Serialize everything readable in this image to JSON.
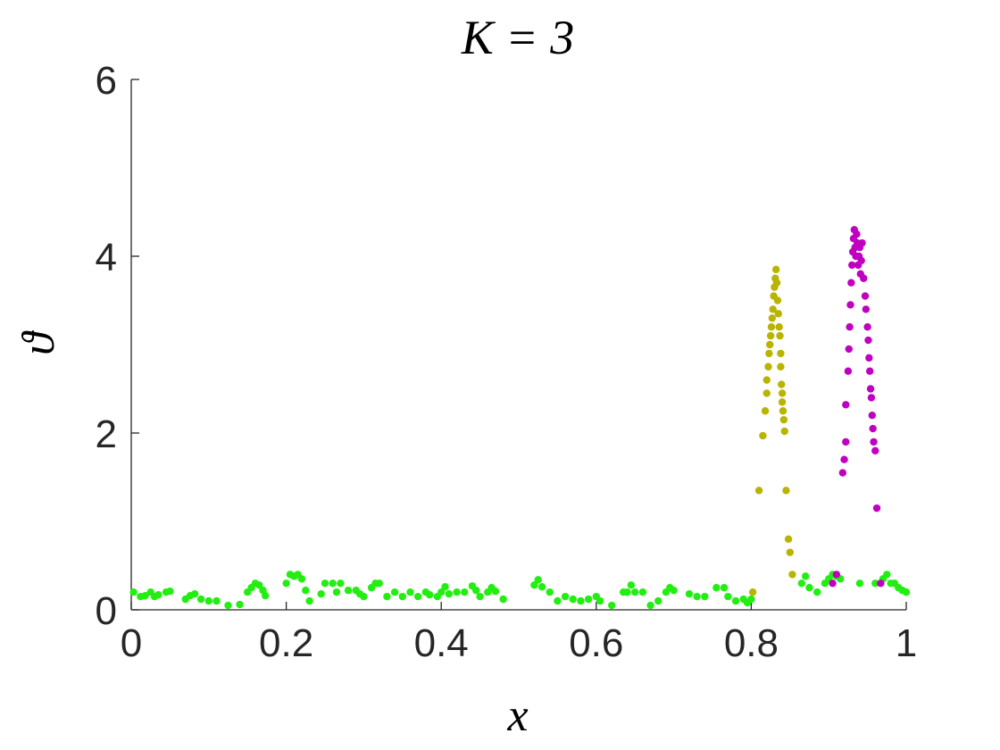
{
  "chart_data": {
    "type": "scatter",
    "title": "K = 3",
    "xlabel": "x",
    "ylabel": "ϑ",
    "xlim": [
      0,
      1
    ],
    "ylim": [
      0,
      6
    ],
    "xticks": [
      0,
      0.2,
      0.4,
      0.6,
      0.8,
      1
    ],
    "xtick_labels": [
      "0",
      "0.2",
      "0.4",
      "0.6",
      "0.8",
      "1"
    ],
    "yticks": [
      0,
      2,
      4,
      6
    ],
    "ytick_labels": [
      "0",
      "2",
      "4",
      "6"
    ],
    "grid": false,
    "legend": "none",
    "series": [
      {
        "color": "#22ee11",
        "points": [
          [
            0.003,
            0.2
          ],
          [
            0.012,
            0.15
          ],
          [
            0.018,
            0.16
          ],
          [
            0.025,
            0.2
          ],
          [
            0.03,
            0.15
          ],
          [
            0.035,
            0.17
          ],
          [
            0.045,
            0.2
          ],
          [
            0.05,
            0.21
          ],
          [
            0.07,
            0.12
          ],
          [
            0.076,
            0.16
          ],
          [
            0.082,
            0.18
          ],
          [
            0.09,
            0.12
          ],
          [
            0.1,
            0.1
          ],
          [
            0.11,
            0.1
          ],
          [
            0.125,
            0.05
          ],
          [
            0.14,
            0.06
          ],
          [
            0.15,
            0.2
          ],
          [
            0.155,
            0.25
          ],
          [
            0.16,
            0.3
          ],
          [
            0.165,
            0.28
          ],
          [
            0.17,
            0.22
          ],
          [
            0.173,
            0.16
          ],
          [
            0.2,
            0.3
          ],
          [
            0.205,
            0.4
          ],
          [
            0.21,
            0.38
          ],
          [
            0.215,
            0.4
          ],
          [
            0.22,
            0.35
          ],
          [
            0.225,
            0.22
          ],
          [
            0.23,
            0.1
          ],
          [
            0.245,
            0.18
          ],
          [
            0.25,
            0.3
          ],
          [
            0.26,
            0.3
          ],
          [
            0.265,
            0.2
          ],
          [
            0.27,
            0.3
          ],
          [
            0.28,
            0.22
          ],
          [
            0.29,
            0.22
          ],
          [
            0.295,
            0.18
          ],
          [
            0.3,
            0.15
          ],
          [
            0.31,
            0.25
          ],
          [
            0.315,
            0.3
          ],
          [
            0.32,
            0.3
          ],
          [
            0.33,
            0.15
          ],
          [
            0.34,
            0.2
          ],
          [
            0.35,
            0.15
          ],
          [
            0.36,
            0.2
          ],
          [
            0.37,
            0.15
          ],
          [
            0.38,
            0.2
          ],
          [
            0.385,
            0.17
          ],
          [
            0.395,
            0.15
          ],
          [
            0.4,
            0.2
          ],
          [
            0.405,
            0.26
          ],
          [
            0.41,
            0.18
          ],
          [
            0.42,
            0.2
          ],
          [
            0.43,
            0.2
          ],
          [
            0.44,
            0.27
          ],
          [
            0.445,
            0.22
          ],
          [
            0.45,
            0.15
          ],
          [
            0.46,
            0.2
          ],
          [
            0.465,
            0.25
          ],
          [
            0.47,
            0.21
          ],
          [
            0.48,
            0.12
          ],
          [
            0.52,
            0.28
          ],
          [
            0.525,
            0.34
          ],
          [
            0.53,
            0.26
          ],
          [
            0.54,
            0.2
          ],
          [
            0.55,
            0.1
          ],
          [
            0.56,
            0.15
          ],
          [
            0.57,
            0.12
          ],
          [
            0.58,
            0.1
          ],
          [
            0.59,
            0.12
          ],
          [
            0.6,
            0.15
          ],
          [
            0.605,
            0.1
          ],
          [
            0.62,
            0.05
          ],
          [
            0.635,
            0.2
          ],
          [
            0.64,
            0.2
          ],
          [
            0.645,
            0.28
          ],
          [
            0.65,
            0.2
          ],
          [
            0.66,
            0.2
          ],
          [
            0.67,
            0.05
          ],
          [
            0.68,
            0.1
          ],
          [
            0.69,
            0.2
          ],
          [
            0.695,
            0.25
          ],
          [
            0.7,
            0.22
          ],
          [
            0.72,
            0.18
          ],
          [
            0.73,
            0.15
          ],
          [
            0.74,
            0.15
          ],
          [
            0.755,
            0.25
          ],
          [
            0.765,
            0.25
          ],
          [
            0.77,
            0.15
          ],
          [
            0.78,
            0.1
          ],
          [
            0.79,
            0.12
          ],
          [
            0.795,
            0.08
          ],
          [
            0.8,
            0.12
          ],
          [
            0.865,
            0.3
          ],
          [
            0.87,
            0.38
          ],
          [
            0.875,
            0.25
          ],
          [
            0.885,
            0.2
          ],
          [
            0.895,
            0.3
          ],
          [
            0.9,
            0.35
          ],
          [
            0.905,
            0.4
          ],
          [
            0.91,
            0.38
          ],
          [
            0.915,
            0.35
          ],
          [
            0.94,
            0.3
          ],
          [
            0.96,
            0.3
          ],
          [
            0.97,
            0.35
          ],
          [
            0.975,
            0.4
          ],
          [
            0.98,
            0.3
          ],
          [
            0.985,
            0.3
          ],
          [
            0.99,
            0.25
          ],
          [
            0.995,
            0.22
          ],
          [
            1.0,
            0.2
          ]
        ]
      },
      {
        "color": "#b8b400",
        "points": [
          [
            0.802,
            0.2
          ],
          [
            0.81,
            1.35
          ],
          [
            0.815,
            1.97
          ],
          [
            0.818,
            2.25
          ],
          [
            0.82,
            2.45
          ],
          [
            0.82,
            2.6
          ],
          [
            0.822,
            2.75
          ],
          [
            0.823,
            2.9
          ],
          [
            0.824,
            3.0
          ],
          [
            0.825,
            3.1
          ],
          [
            0.826,
            3.2
          ],
          [
            0.827,
            3.3
          ],
          [
            0.828,
            3.4
          ],
          [
            0.829,
            3.55
          ],
          [
            0.83,
            3.65
          ],
          [
            0.831,
            3.75
          ],
          [
            0.832,
            3.85
          ],
          [
            0.833,
            3.7
          ],
          [
            0.834,
            3.5
          ],
          [
            0.835,
            3.35
          ],
          [
            0.836,
            3.2
          ],
          [
            0.837,
            3.1
          ],
          [
            0.838,
            2.9
          ],
          [
            0.838,
            2.75
          ],
          [
            0.839,
            2.55
          ],
          [
            0.84,
            2.45
          ],
          [
            0.84,
            2.35
          ],
          [
            0.841,
            2.25
          ],
          [
            0.842,
            2.15
          ],
          [
            0.843,
            2.02
          ],
          [
            0.845,
            1.35
          ],
          [
            0.848,
            0.8
          ],
          [
            0.85,
            0.65
          ],
          [
            0.853,
            0.4
          ]
        ]
      },
      {
        "color": "#c000c0",
        "points": [
          [
            0.91,
            0.4
          ],
          [
            0.918,
            1.55
          ],
          [
            0.92,
            1.7
          ],
          [
            0.922,
            1.9
          ],
          [
            0.922,
            2.32
          ],
          [
            0.925,
            2.7
          ],
          [
            0.926,
            2.95
          ],
          [
            0.927,
            3.2
          ],
          [
            0.928,
            3.45
          ],
          [
            0.929,
            3.7
          ],
          [
            0.93,
            3.9
          ],
          [
            0.931,
            4.05
          ],
          [
            0.932,
            4.2
          ],
          [
            0.933,
            4.3
          ],
          [
            0.934,
            4.1
          ],
          [
            0.935,
            4.0
          ],
          [
            0.936,
            4.25
          ],
          [
            0.937,
            4.15
          ],
          [
            0.938,
            3.9
          ],
          [
            0.939,
            4.0
          ],
          [
            0.94,
            4.1
          ],
          [
            0.941,
            3.8
          ],
          [
            0.942,
            3.95
          ],
          [
            0.943,
            4.15
          ],
          [
            0.945,
            3.75
          ],
          [
            0.947,
            3.55
          ],
          [
            0.948,
            3.4
          ],
          [
            0.95,
            3.2
          ],
          [
            0.951,
            3.05
          ],
          [
            0.952,
            2.85
          ],
          [
            0.953,
            2.7
          ],
          [
            0.954,
            2.5
          ],
          [
            0.955,
            2.4
          ],
          [
            0.956,
            2.2
          ],
          [
            0.957,
            2.05
          ],
          [
            0.958,
            1.9
          ],
          [
            0.96,
            1.8
          ],
          [
            0.962,
            1.15
          ],
          [
            0.967,
            0.3
          ],
          [
            0.905,
            0.3
          ]
        ]
      }
    ]
  }
}
